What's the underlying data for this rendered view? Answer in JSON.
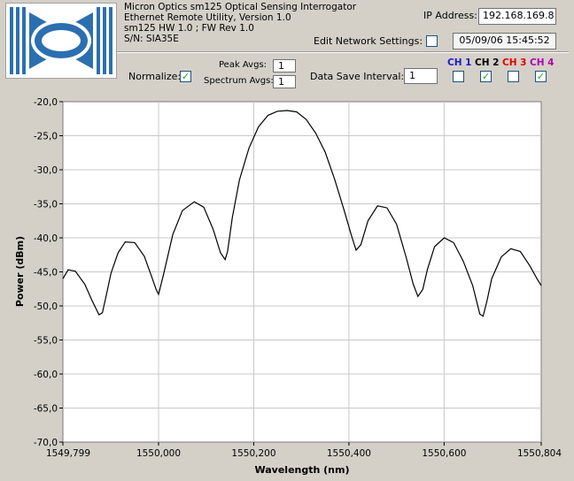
{
  "header": {
    "title_line1": "Micron Optics sm125 Optical Sensing Interrogator",
    "title_line2": "Ethernet Remote Utility, Version 1.0",
    "title_line3": "sm125 HW 1.0 ; FW Rev 1.0",
    "serial": "S/N: SIA35E"
  },
  "network": {
    "ip_label": "IP Address:",
    "ip_value": "192.168.169.8",
    "edit_label": "Edit Network Settings:",
    "edit_checked": false,
    "datetime": "05/09/06 15:45:52"
  },
  "controls": {
    "normalize_label": "Normalize:",
    "normalize_checked": true,
    "peak_avgs_label": "Peak Avgs:",
    "peak_avgs_value": "1",
    "spectrum_avgs_label": "Spectrum Avgs:",
    "spectrum_avgs_value": "1",
    "data_save_label": "Data Save Interval:",
    "data_save_value": "1"
  },
  "channels": [
    {
      "label": "CH 1",
      "color": "#1a1acc",
      "checked": false
    },
    {
      "label": "CH 2",
      "color": "#000000",
      "checked": true
    },
    {
      "label": "CH 3",
      "color": "#e00000",
      "checked": false
    },
    {
      "label": "CH 4",
      "color": "#b000b0",
      "checked": true
    }
  ],
  "colors": {
    "panel_bg": "#d4d0c8",
    "plot_bg": "#ffffff",
    "grid": "#c8c8c8",
    "trace": "#000000",
    "logo_blue": "#2c6fb0"
  },
  "chart_data": {
    "type": "line",
    "xlabel": "Wavelength (nm)",
    "ylabel": "Power (dBm)",
    "xlim": [
      1549.799,
      1550.804
    ],
    "ylim": [
      -70,
      -20
    ],
    "x_ticks": [
      1549.799,
      1550.0,
      1550.2,
      1550.4,
      1550.6,
      1550.804
    ],
    "x_tick_labels": [
      "1549,799",
      "1550,000",
      "1550,200",
      "1550,400",
      "1550,600",
      "1550,804"
    ],
    "y_ticks": [
      -20,
      -25,
      -30,
      -35,
      -40,
      -45,
      -50,
      -55,
      -60,
      -65,
      -70
    ],
    "y_tick_labels": [
      "-20,0",
      "-25,0",
      "-30,0",
      "-35,0",
      "-40,0",
      "-45,0",
      "-50,0",
      "-55,0",
      "-60,0",
      "-65,0",
      "-70,0"
    ],
    "grid": true,
    "series": [
      {
        "x": [
          1549.799,
          1549.81,
          1549.825,
          1549.845,
          1549.86,
          1549.875,
          1549.882,
          1549.89,
          1549.9,
          1549.915,
          1549.93,
          1549.95,
          1549.97,
          1549.985,
          1549.995,
          1550.0,
          1550.01,
          1550.03,
          1550.05,
          1550.075,
          1550.095,
          1550.115,
          1550.13,
          1550.14,
          1550.145,
          1550.155,
          1550.17,
          1550.19,
          1550.21,
          1550.23,
          1550.25,
          1550.27,
          1550.29,
          1550.31,
          1550.33,
          1550.35,
          1550.37,
          1550.39,
          1550.405,
          1550.415,
          1550.425,
          1550.44,
          1550.46,
          1550.48,
          1550.5,
          1550.52,
          1550.535,
          1550.545,
          1550.555,
          1550.565,
          1550.58,
          1550.6,
          1550.62,
          1550.64,
          1550.66,
          1550.675,
          1550.682,
          1550.69,
          1550.7,
          1550.72,
          1550.74,
          1550.76,
          1550.78,
          1550.795,
          1550.804
        ],
        "y": [
          -46.0,
          -44.7,
          -44.9,
          -46.8,
          -49.2,
          -51.3,
          -51.0,
          -48.5,
          -45.2,
          -42.2,
          -40.6,
          -40.7,
          -42.7,
          -45.6,
          -47.6,
          -48.3,
          -45.5,
          -39.5,
          -36.0,
          -34.7,
          -35.5,
          -38.8,
          -42.2,
          -43.2,
          -42.0,
          -37.0,
          -31.5,
          -26.8,
          -23.7,
          -22.0,
          -21.4,
          -21.3,
          -21.5,
          -22.6,
          -24.6,
          -27.4,
          -31.4,
          -36.0,
          -39.6,
          -41.8,
          -41.0,
          -37.5,
          -35.3,
          -35.6,
          -38.0,
          -42.8,
          -46.8,
          -48.6,
          -47.6,
          -44.6,
          -41.3,
          -40.0,
          -40.7,
          -43.4,
          -47.0,
          -51.2,
          -51.5,
          -49.3,
          -46.0,
          -42.8,
          -41.6,
          -42.0,
          -44.1,
          -46.0,
          -47.0
        ]
      }
    ]
  }
}
